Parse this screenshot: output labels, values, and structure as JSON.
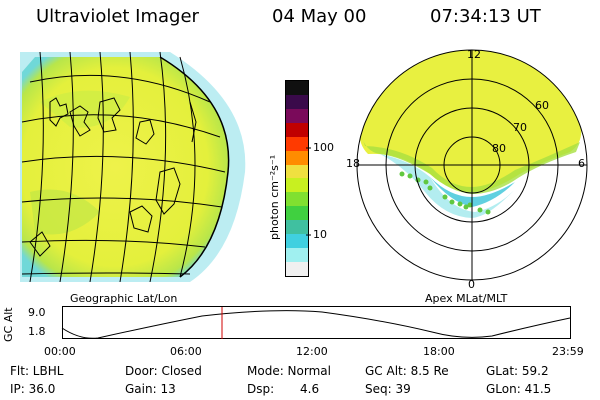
{
  "header": {
    "instrument": "Ultraviolet Imager",
    "date": "04 May 00",
    "time": "07:34:13 UT"
  },
  "left_panel": {
    "caption": "Geographic Lat/Lon"
  },
  "right_panel": {
    "caption": "Apex MLat/MLT",
    "mlt_labels": [
      "12",
      "18",
      "6",
      "0"
    ],
    "mlat_labels": [
      "60",
      "70",
      "80"
    ]
  },
  "colorbar": {
    "unit_label": "photon cm⁻²s⁻¹",
    "ticks": [
      "100",
      "10"
    ],
    "colors": [
      "#101010",
      "#3a0a4a",
      "#7a0a5a",
      "#c00000",
      "#ff3a00",
      "#ff8c00",
      "#f0e040",
      "#c8f020",
      "#80e030",
      "#40d040",
      "#40c0a0",
      "#40d0e0",
      "#a0f0f0",
      "#f0f0f0"
    ]
  },
  "altitude_plot": {
    "y_axis_label": "GC Alt",
    "y_ticks": [
      "9.0",
      "1.8"
    ],
    "x_ticks": [
      "00:00",
      "06:00",
      "12:00",
      "18:00",
      "23:59"
    ],
    "current_marker_color": "#d00000"
  },
  "info": {
    "row1": {
      "flt": "Flt: LBHL",
      "door": "Door: Closed",
      "mode": "Mode: Normal",
      "gc_alt": "GC Alt: 8.5 Re",
      "glat": "GLat: 59.2"
    },
    "row2": {
      "ip": "IP: 36.0",
      "gain": "Gain: 13",
      "dsp_label": "Dsp:",
      "dsp_value": "4.6",
      "seq": "Seq: 39",
      "glon": "GLon: 41.5"
    }
  },
  "colors": {
    "image_yellow": "#e8f040",
    "image_green": "#a8e040",
    "image_cyan": "#60d0e0",
    "grid": "#000000"
  }
}
